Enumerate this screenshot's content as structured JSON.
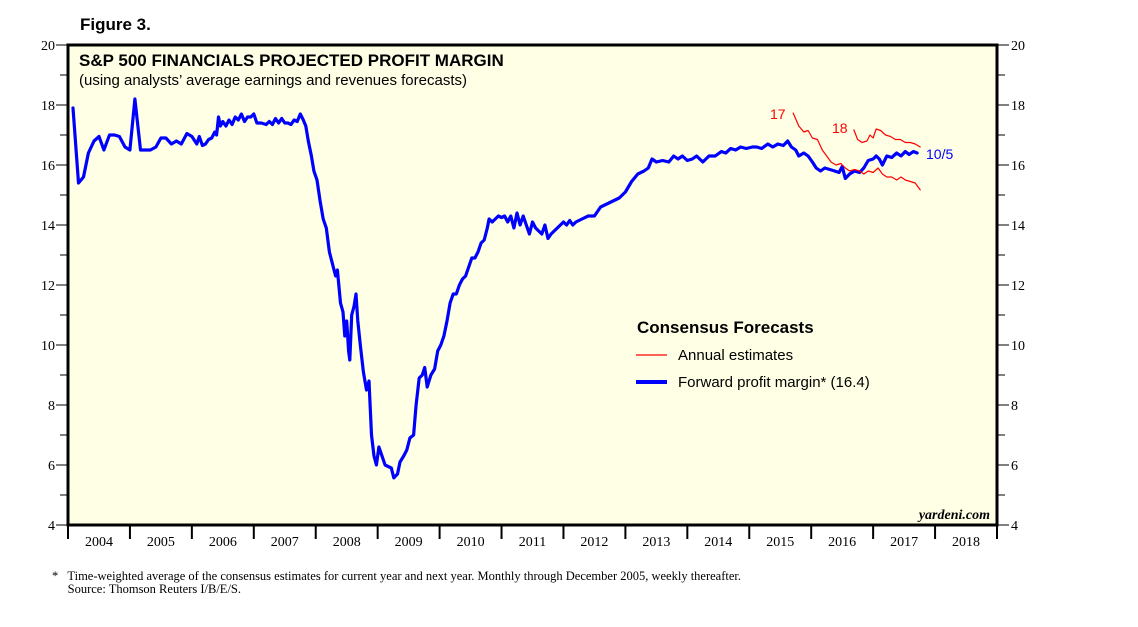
{
  "figure_label": "Figure 3.",
  "chart_data": {
    "type": "line",
    "title": "S&P 500 FINANCIALS PROJECTED PROFIT MARGIN",
    "subtitle": "(using analysts’ average earnings and revenues forecasts)",
    "xlabel": "",
    "ylabel": "",
    "xlim": [
      2004,
      2019
    ],
    "ylim": [
      4,
      20
    ],
    "x_tick_labels": [
      "2004",
      "2005",
      "2006",
      "2007",
      "2008",
      "2009",
      "2010",
      "2011",
      "2012",
      "2013",
      "2014",
      "2015",
      "2016",
      "2017",
      "2018"
    ],
    "y_ticks": [
      4,
      6,
      8,
      10,
      12,
      14,
      16,
      18,
      20
    ],
    "y_tick_labels": [
      "4",
      "6",
      "8",
      "10",
      "12",
      "14",
      "16",
      "18",
      "20"
    ],
    "grid": false,
    "legend": {
      "title": "Consensus Forecasts",
      "placement": "center-right",
      "entries": [
        {
          "label": "Annual estimates",
          "color": "#ff0000"
        },
        {
          "label": "Forward profit margin* (16.4)",
          "color": "#0000ff"
        }
      ]
    },
    "series": [
      {
        "name": "Forward profit margin*",
        "color": "#0000ff",
        "points": [
          [
            2004.08,
            17.9
          ],
          [
            2004.17,
            15.4
          ],
          [
            2004.25,
            15.6
          ],
          [
            2004.33,
            16.4
          ],
          [
            2004.42,
            16.8
          ],
          [
            2004.5,
            16.95
          ],
          [
            2004.58,
            16.5
          ],
          [
            2004.67,
            17.0
          ],
          [
            2004.75,
            17.0
          ],
          [
            2004.83,
            16.95
          ],
          [
            2004.92,
            16.6
          ],
          [
            2005.0,
            16.5
          ],
          [
            2005.08,
            18.2
          ],
          [
            2005.17,
            16.5
          ],
          [
            2005.33,
            16.5
          ],
          [
            2005.42,
            16.6
          ],
          [
            2005.5,
            16.9
          ],
          [
            2005.58,
            16.9
          ],
          [
            2005.67,
            16.7
          ],
          [
            2005.75,
            16.8
          ],
          [
            2005.83,
            16.7
          ],
          [
            2005.92,
            17.05
          ],
          [
            2006.0,
            16.95
          ],
          [
            2006.08,
            16.7
          ],
          [
            2006.12,
            16.95
          ],
          [
            2006.17,
            16.65
          ],
          [
            2006.22,
            16.7
          ],
          [
            2006.27,
            16.85
          ],
          [
            2006.32,
            16.9
          ],
          [
            2006.37,
            17.1
          ],
          [
            2006.4,
            17.0
          ],
          [
            2006.43,
            17.6
          ],
          [
            2006.46,
            17.3
          ],
          [
            2006.5,
            17.45
          ],
          [
            2006.55,
            17.3
          ],
          [
            2006.6,
            17.5
          ],
          [
            2006.65,
            17.35
          ],
          [
            2006.7,
            17.6
          ],
          [
            2006.75,
            17.5
          ],
          [
            2006.8,
            17.7
          ],
          [
            2006.85,
            17.45
          ],
          [
            2006.9,
            17.6
          ],
          [
            2006.95,
            17.6
          ],
          [
            2007.0,
            17.7
          ],
          [
            2007.05,
            17.4
          ],
          [
            2007.12,
            17.4
          ],
          [
            2007.2,
            17.35
          ],
          [
            2007.25,
            17.45
          ],
          [
            2007.3,
            17.35
          ],
          [
            2007.35,
            17.55
          ],
          [
            2007.4,
            17.4
          ],
          [
            2007.45,
            17.55
          ],
          [
            2007.5,
            17.4
          ],
          [
            2007.55,
            17.4
          ],
          [
            2007.6,
            17.35
          ],
          [
            2007.65,
            17.5
          ],
          [
            2007.7,
            17.45
          ],
          [
            2007.75,
            17.7
          ],
          [
            2007.8,
            17.5
          ],
          [
            2007.84,
            17.3
          ],
          [
            2007.88,
            16.8
          ],
          [
            2007.93,
            16.3
          ],
          [
            2007.97,
            15.8
          ],
          [
            2008.02,
            15.5
          ],
          [
            2008.07,
            14.8
          ],
          [
            2008.12,
            14.2
          ],
          [
            2008.17,
            13.9
          ],
          [
            2008.22,
            13.1
          ],
          [
            2008.27,
            12.7
          ],
          [
            2008.32,
            12.3
          ],
          [
            2008.35,
            12.5
          ],
          [
            2008.4,
            11.4
          ],
          [
            2008.44,
            11.1
          ],
          [
            2008.47,
            10.3
          ],
          [
            2008.5,
            10.8
          ],
          [
            2008.53,
            9.8
          ],
          [
            2008.55,
            9.5
          ],
          [
            2008.58,
            11.0
          ],
          [
            2008.62,
            11.3
          ],
          [
            2008.65,
            11.7
          ],
          [
            2008.68,
            10.8
          ],
          [
            2008.72,
            10.0
          ],
          [
            2008.77,
            9.1
          ],
          [
            2008.82,
            8.5
          ],
          [
            2008.86,
            8.8
          ],
          [
            2008.9,
            7.0
          ],
          [
            2008.94,
            6.3
          ],
          [
            2008.98,
            6.0
          ],
          [
            2009.02,
            6.6
          ],
          [
            2009.07,
            6.3
          ],
          [
            2009.12,
            6.0
          ],
          [
            2009.17,
            5.95
          ],
          [
            2009.22,
            5.9
          ],
          [
            2009.26,
            5.57
          ],
          [
            2009.32,
            5.7
          ],
          [
            2009.36,
            6.1
          ],
          [
            2009.42,
            6.3
          ],
          [
            2009.47,
            6.5
          ],
          [
            2009.52,
            6.9
          ],
          [
            2009.58,
            7.0
          ],
          [
            2009.62,
            8.0
          ],
          [
            2009.67,
            8.9
          ],
          [
            2009.72,
            9.0
          ],
          [
            2009.76,
            9.25
          ],
          [
            2009.8,
            8.6
          ],
          [
            2009.86,
            9.0
          ],
          [
            2009.92,
            9.2
          ],
          [
            2009.97,
            9.8
          ],
          [
            2010.02,
            10.0
          ],
          [
            2010.07,
            10.3
          ],
          [
            2010.12,
            10.8
          ],
          [
            2010.17,
            11.4
          ],
          [
            2010.22,
            11.7
          ],
          [
            2010.27,
            11.7
          ],
          [
            2010.32,
            12.0
          ],
          [
            2010.37,
            12.2
          ],
          [
            2010.42,
            12.3
          ],
          [
            2010.47,
            12.6
          ],
          [
            2010.52,
            12.9
          ],
          [
            2010.57,
            12.9
          ],
          [
            2010.62,
            13.1
          ],
          [
            2010.67,
            13.4
          ],
          [
            2010.72,
            13.5
          ],
          [
            2010.77,
            13.9
          ],
          [
            2010.8,
            14.2
          ],
          [
            2010.85,
            14.1
          ],
          [
            2010.9,
            14.2
          ],
          [
            2010.95,
            14.3
          ],
          [
            2011.0,
            14.25
          ],
          [
            2011.05,
            14.3
          ],
          [
            2011.1,
            14.1
          ],
          [
            2011.15,
            14.3
          ],
          [
            2011.2,
            13.9
          ],
          [
            2011.25,
            14.4
          ],
          [
            2011.3,
            14.0
          ],
          [
            2011.35,
            14.3
          ],
          [
            2011.4,
            14.0
          ],
          [
            2011.45,
            13.7
          ],
          [
            2011.5,
            14.1
          ],
          [
            2011.55,
            13.9
          ],
          [
            2011.6,
            13.8
          ],
          [
            2011.65,
            13.7
          ],
          [
            2011.7,
            14.0
          ],
          [
            2011.75,
            13.55
          ],
          [
            2011.8,
            13.7
          ],
          [
            2011.85,
            13.8
          ],
          [
            2011.9,
            13.9
          ],
          [
            2011.95,
            14.0
          ],
          [
            2012.0,
            14.1
          ],
          [
            2012.05,
            14.0
          ],
          [
            2012.1,
            14.15
          ],
          [
            2012.15,
            14.0
          ],
          [
            2012.2,
            14.1
          ],
          [
            2012.3,
            14.2
          ],
          [
            2012.4,
            14.3
          ],
          [
            2012.5,
            14.3
          ],
          [
            2012.6,
            14.6
          ],
          [
            2012.7,
            14.7
          ],
          [
            2012.8,
            14.8
          ],
          [
            2012.9,
            14.9
          ],
          [
            2013.0,
            15.1
          ],
          [
            2013.1,
            15.45
          ],
          [
            2013.2,
            15.7
          ],
          [
            2013.3,
            15.8
          ],
          [
            2013.37,
            15.9
          ],
          [
            2013.43,
            16.2
          ],
          [
            2013.5,
            16.1
          ],
          [
            2013.6,
            16.15
          ],
          [
            2013.7,
            16.1
          ],
          [
            2013.78,
            16.3
          ],
          [
            2013.85,
            16.2
          ],
          [
            2013.92,
            16.3
          ],
          [
            2014.0,
            16.15
          ],
          [
            2014.08,
            16.2
          ],
          [
            2014.15,
            16.3
          ],
          [
            2014.25,
            16.1
          ],
          [
            2014.35,
            16.3
          ],
          [
            2014.45,
            16.3
          ],
          [
            2014.55,
            16.45
          ],
          [
            2014.62,
            16.4
          ],
          [
            2014.7,
            16.55
          ],
          [
            2014.78,
            16.5
          ],
          [
            2014.86,
            16.6
          ],
          [
            2014.95,
            16.55
          ],
          [
            2015.05,
            16.6
          ],
          [
            2015.12,
            16.6
          ],
          [
            2015.2,
            16.55
          ],
          [
            2015.3,
            16.7
          ],
          [
            2015.38,
            16.6
          ],
          [
            2015.46,
            16.7
          ],
          [
            2015.55,
            16.65
          ],
          [
            2015.62,
            16.8
          ],
          [
            2015.68,
            16.6
          ],
          [
            2015.75,
            16.5
          ],
          [
            2015.8,
            16.3
          ],
          [
            2015.88,
            16.4
          ],
          [
            2015.95,
            16.3
          ],
          [
            2016.02,
            16.1
          ],
          [
            2016.08,
            15.9
          ],
          [
            2016.15,
            15.8
          ],
          [
            2016.22,
            15.9
          ],
          [
            2016.3,
            15.85
          ],
          [
            2016.38,
            15.8
          ],
          [
            2016.45,
            15.75
          ],
          [
            2016.5,
            15.95
          ],
          [
            2016.55,
            15.55
          ],
          [
            2016.62,
            15.7
          ],
          [
            2016.7,
            15.8
          ],
          [
            2016.78,
            15.75
          ],
          [
            2016.85,
            15.9
          ],
          [
            2016.92,
            16.15
          ],
          [
            2017.0,
            16.2
          ],
          [
            2017.05,
            16.3
          ],
          [
            2017.1,
            16.2
          ],
          [
            2017.15,
            16.0
          ],
          [
            2017.22,
            16.3
          ],
          [
            2017.3,
            16.25
          ],
          [
            2017.38,
            16.4
          ],
          [
            2017.45,
            16.3
          ],
          [
            2017.52,
            16.45
          ],
          [
            2017.58,
            16.35
          ],
          [
            2017.65,
            16.45
          ],
          [
            2017.71,
            16.4
          ]
        ]
      },
      {
        "name": "Annual estimate 2017",
        "label": "17",
        "color": "#ff0000",
        "points": [
          [
            2015.71,
            17.73
          ],
          [
            2015.8,
            17.3
          ],
          [
            2015.88,
            17.1
          ],
          [
            2015.95,
            17.15
          ],
          [
            2016.02,
            16.9
          ],
          [
            2016.1,
            16.85
          ],
          [
            2016.18,
            16.5
          ],
          [
            2016.25,
            16.3
          ],
          [
            2016.32,
            16.1
          ],
          [
            2016.4,
            16.0
          ],
          [
            2016.48,
            16.05
          ],
          [
            2016.55,
            15.9
          ],
          [
            2016.62,
            15.8
          ],
          [
            2016.7,
            15.85
          ],
          [
            2016.78,
            15.8
          ],
          [
            2016.85,
            15.7
          ],
          [
            2016.92,
            15.8
          ],
          [
            2017.0,
            15.75
          ],
          [
            2017.08,
            15.9
          ],
          [
            2017.15,
            15.7
          ],
          [
            2017.22,
            15.6
          ],
          [
            2017.3,
            15.6
          ],
          [
            2017.38,
            15.5
          ],
          [
            2017.45,
            15.6
          ],
          [
            2017.52,
            15.5
          ],
          [
            2017.6,
            15.45
          ],
          [
            2017.68,
            15.4
          ],
          [
            2017.76,
            15.17
          ]
        ]
      },
      {
        "name": "Annual estimate 2018",
        "label": "18",
        "color": "#ff0000",
        "points": [
          [
            2016.69,
            17.17
          ],
          [
            2016.75,
            16.85
          ],
          [
            2016.82,
            16.75
          ],
          [
            2016.9,
            16.8
          ],
          [
            2016.95,
            17.0
          ],
          [
            2017.0,
            16.9
          ],
          [
            2017.05,
            17.2
          ],
          [
            2017.12,
            17.15
          ],
          [
            2017.2,
            17.0
          ],
          [
            2017.28,
            16.95
          ],
          [
            2017.36,
            16.85
          ],
          [
            2017.44,
            16.85
          ],
          [
            2017.52,
            16.75
          ],
          [
            2017.6,
            16.75
          ],
          [
            2017.68,
            16.7
          ],
          [
            2017.76,
            16.6
          ]
        ]
      }
    ],
    "annotations": [
      {
        "text": "17",
        "color": "#ff0000"
      },
      {
        "text": "18",
        "color": "#ff0000"
      },
      {
        "text": "10/5",
        "color": "#0000ff"
      }
    ],
    "watermark": "yardeni.com",
    "plot_background": "#ffffe6"
  },
  "footnote_lines": [
    "*   Time-weighted average of the consensus estimates for current year and next year. Monthly through December 2005, weekly thereafter.",
    "     Source: Thomson Reuters I/B/E/S."
  ]
}
